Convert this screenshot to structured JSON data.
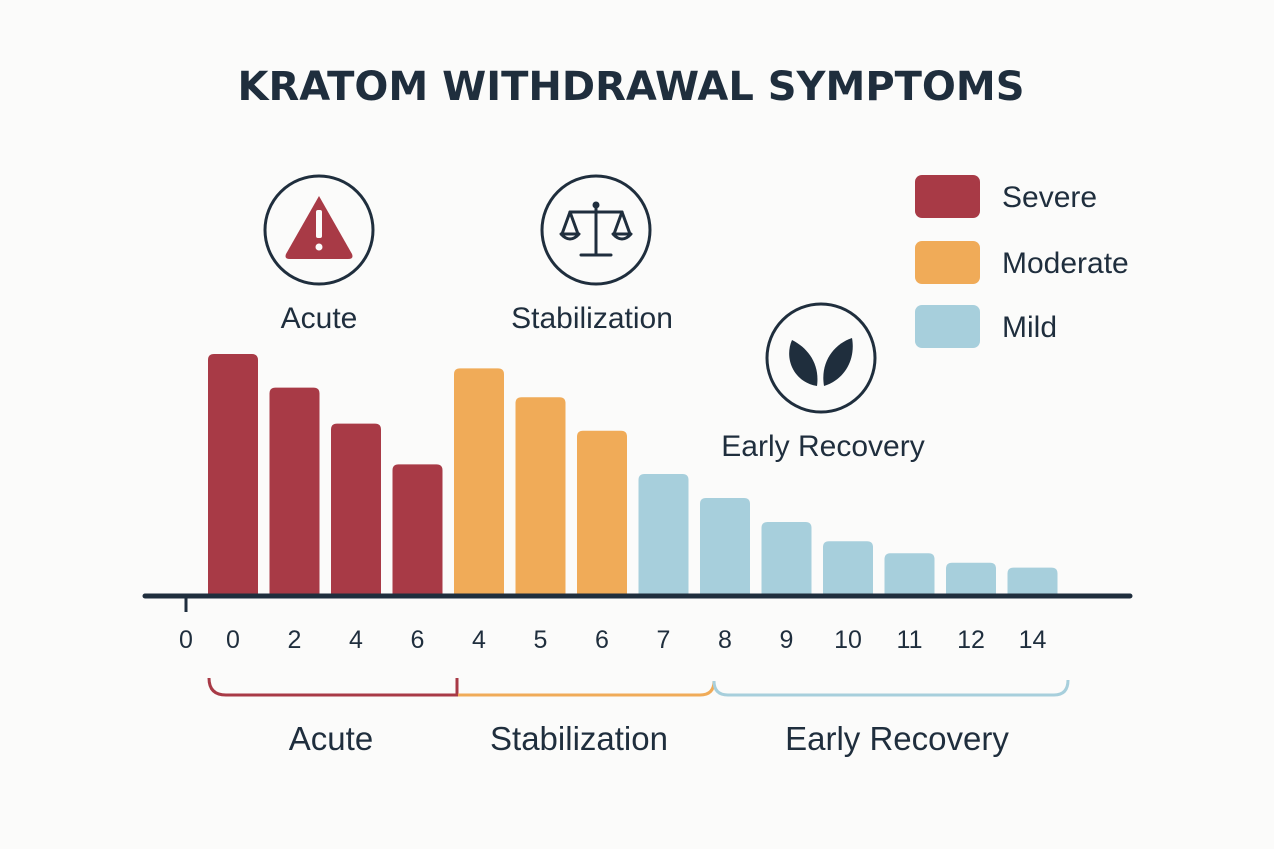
{
  "colors": {
    "severe": "#a83a46",
    "moderate": "#f0ab58",
    "mild": "#a7cfdc",
    "ink": "#1f2e3d",
    "background": "#fbfbfa"
  },
  "legend": [
    {
      "label": "Severe",
      "color": "#a83a46"
    },
    {
      "label": "Moderate",
      "color": "#f0ab58"
    },
    {
      "label": "Mild",
      "color": "#a7cfdc"
    }
  ],
  "phase_icons": [
    {
      "label": "Acute",
      "icon": "warning-icon"
    },
    {
      "label": "Stabilization",
      "icon": "scales-icon"
    },
    {
      "label": "Early Recovery",
      "icon": "leaf-icon"
    }
  ],
  "ranges": [
    {
      "label": "Acute",
      "color": "#a83a46"
    },
    {
      "label": "Stabilization",
      "color": "#f0ab58"
    },
    {
      "label": "Early Recovery",
      "color": "#a7cfdc"
    }
  ],
  "chart_data": {
    "type": "bar",
    "title": "KRATOM WITHDRAWAL SYMPTOMS",
    "xlabel": "",
    "ylabel": "",
    "ylim": [
      0,
      100
    ],
    "grid": false,
    "legend_position": "top-right",
    "axis_start_label": "0",
    "categories": [
      "0",
      "2",
      "4",
      "6",
      "4",
      "5",
      "6",
      "7",
      "8",
      "9",
      "10",
      "11",
      "12",
      "14"
    ],
    "values": [
      100,
      86,
      71,
      54,
      94,
      82,
      68,
      50,
      40,
      30,
      22,
      17,
      13,
      11
    ],
    "severity": [
      "severe",
      "severe",
      "severe",
      "severe",
      "moderate",
      "moderate",
      "moderate",
      "mild",
      "mild",
      "mild",
      "mild",
      "mild",
      "mild",
      "mild"
    ],
    "phase": [
      "Acute",
      "Acute",
      "Acute",
      "Acute",
      "Stabilization",
      "Stabilization",
      "Stabilization",
      "Early Recovery",
      "Early Recovery",
      "Early Recovery",
      "Early Recovery",
      "Early Recovery",
      "Early Recovery",
      "Early Recovery"
    ]
  }
}
